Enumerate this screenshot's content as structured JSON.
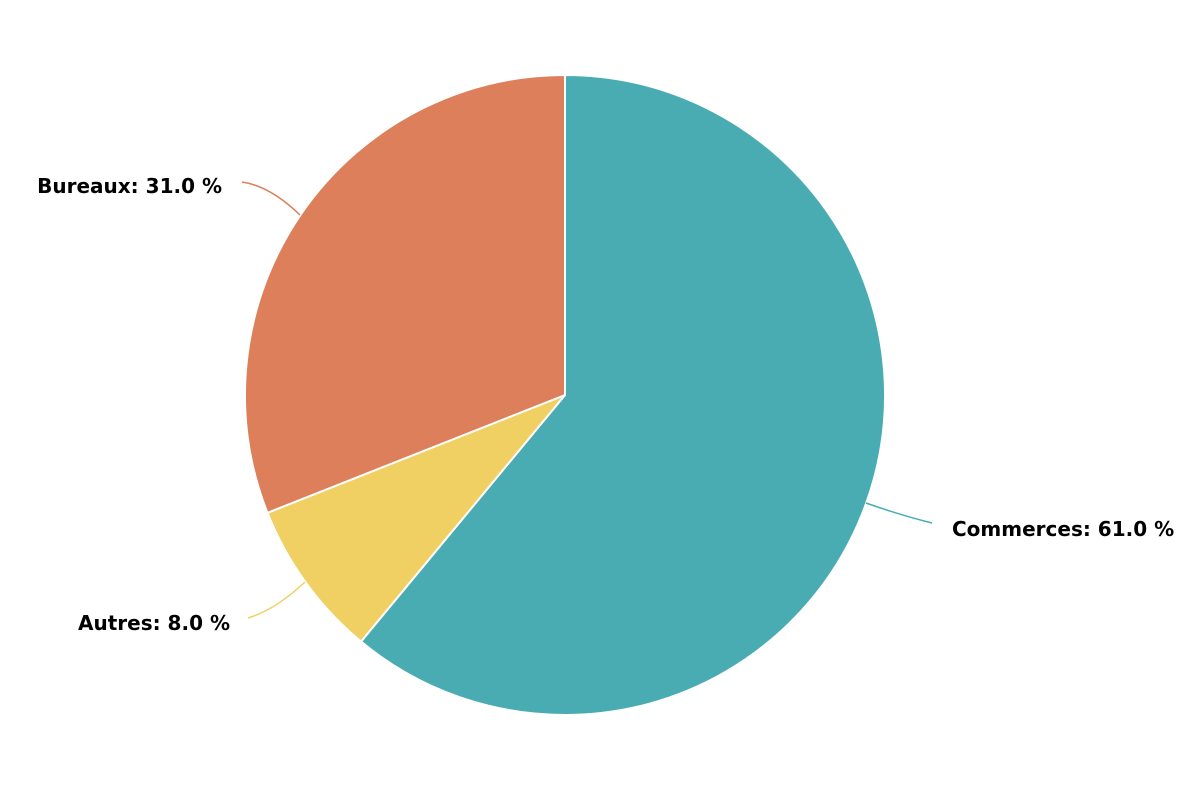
{
  "chart_data": {
    "type": "pie",
    "start_angle_deg": 0,
    "direction": "clockwise",
    "slices": [
      {
        "label": "Commerces",
        "value": 61.0,
        "color": "#48acb2"
      },
      {
        "label": "Autres",
        "value": 8.0,
        "color": "#f0d063"
      },
      {
        "label": "Bureaux",
        "value": 31.0,
        "color": "#dc7f5a"
      }
    ],
    "data_labels": [
      {
        "text": "Commerces: 61.0 %"
      },
      {
        "text": "Autres: 8.0 %"
      },
      {
        "text": "Bureaux: 31.0 %"
      }
    ]
  }
}
